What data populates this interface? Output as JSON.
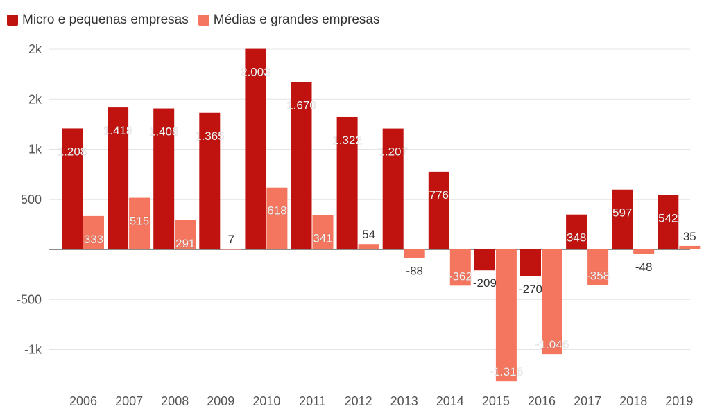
{
  "chart_data": {
    "type": "bar",
    "categories": [
      "2006",
      "2007",
      "2008",
      "2009",
      "2010",
      "2011",
      "2012",
      "2013",
      "2014",
      "2015",
      "2016",
      "2017",
      "2018",
      "2019"
    ],
    "series": [
      {
        "name": "Micro e pequenas empresas",
        "color": "#c0120f",
        "values": [
          1208,
          1418,
          1408,
          1365,
          2003,
          1670,
          1322,
          1207,
          776,
          -209,
          -270,
          348,
          597,
          542
        ],
        "labels": [
          "1.208",
          "1.418",
          "1.408",
          "1.365",
          "2.003",
          "1.670",
          "1.322",
          "1.207",
          "776",
          "-209",
          "-270",
          "348",
          "597",
          "542"
        ]
      },
      {
        "name": "Médias e grandes empresas",
        "color": "#f4765e",
        "values": [
          333,
          515,
          291,
          7,
          618,
          341,
          54,
          -88,
          -362,
          -1316,
          -1046,
          -358,
          -48,
          35
        ],
        "labels": [
          "333",
          "515",
          "291",
          "7",
          "618",
          "341",
          "54",
          "-88",
          "-362",
          "-1.316",
          "-1.046",
          "-358",
          "-48",
          "35"
        ]
      }
    ],
    "y_ticks": [
      {
        "value": 2000,
        "label": "2k"
      },
      {
        "value": 1500,
        "label": "2k"
      },
      {
        "value": 1000,
        "label": "1k"
      },
      {
        "value": 500,
        "label": "500"
      },
      {
        "value": -500,
        "label": "-500"
      },
      {
        "value": -1000,
        "label": "-1k"
      }
    ],
    "ylim": [
      -1300,
      2000
    ],
    "grid": true,
    "legend_position": "top-left"
  }
}
